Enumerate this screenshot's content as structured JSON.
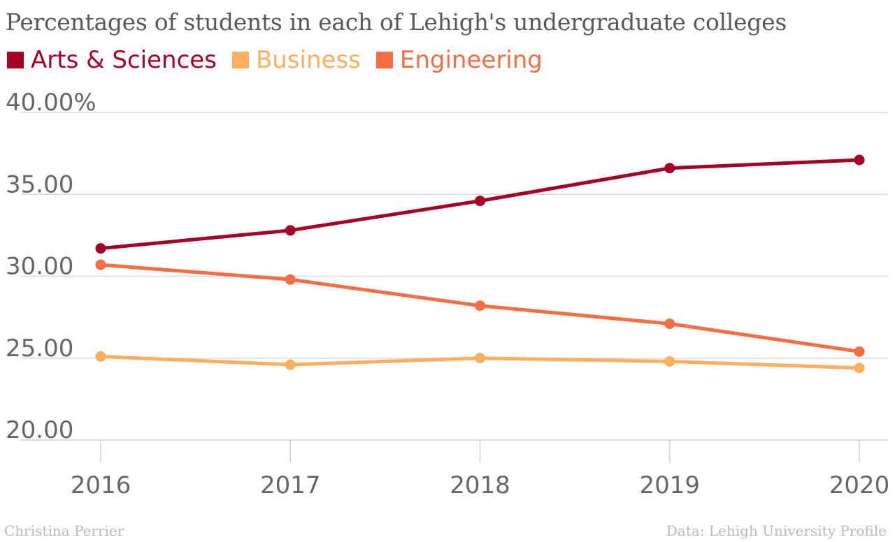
{
  "title": "Percentages of students in each of Lehigh's undergraduate colleges",
  "footer": {
    "author": "Christina Perrier",
    "source": "Data: Lehigh University Profile"
  },
  "colors": {
    "arts_sciences": "#a50026",
    "business": "#fdae61",
    "engineering": "#f46d43",
    "grid": "#d9d9d9",
    "text": "#666666"
  },
  "chart_data": {
    "type": "line",
    "title": "Percentages of students in each of Lehigh's undergraduate colleges",
    "x": [
      "2016",
      "2017",
      "2018",
      "2019",
      "2020"
    ],
    "ylim": [
      20,
      40
    ],
    "yticks": [
      {
        "value": 40,
        "label": "40.00%"
      },
      {
        "value": 35,
        "label": "35.00"
      },
      {
        "value": 30,
        "label": "30.00"
      },
      {
        "value": 25,
        "label": "25.00"
      },
      {
        "value": 20,
        "label": "20.00"
      }
    ],
    "grid": true,
    "legend_position": "top-left",
    "series": [
      {
        "name": "Arts & Sciences",
        "color": "#a50026",
        "values": [
          31.7,
          32.8,
          34.6,
          36.6,
          37.1
        ]
      },
      {
        "name": "Business",
        "color": "#fdae61",
        "values": [
          25.1,
          24.6,
          25.0,
          24.8,
          24.4
        ]
      },
      {
        "name": "Engineering",
        "color": "#f46d43",
        "values": [
          30.7,
          29.8,
          28.2,
          27.1,
          25.4
        ]
      }
    ]
  }
}
